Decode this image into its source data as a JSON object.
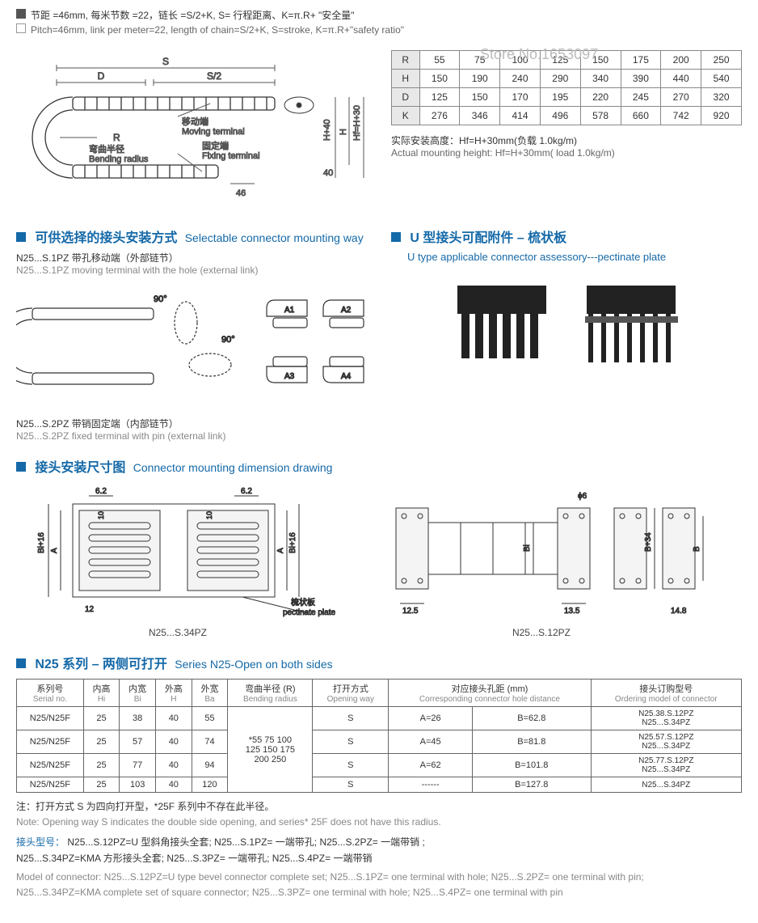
{
  "pitch": {
    "cn": "节距 =46mm, 每米节数 =22，链长 =S/2+K, S= 行程距离、K=π.R+ \"安全量\"",
    "en": "Pitch=46mm, link per meter=22, length of chain=S/2+K, S=stroke, K=π.R+\"safety ratio\""
  },
  "diagram1": {
    "labels": {
      "S": "S",
      "S2": "S/2",
      "D": "D",
      "R": "R",
      "moving_cn": "移动端",
      "moving_en": "Moving terminal",
      "bend_cn": "弯曲半径",
      "bend_en": "Bending radius",
      "fixing_cn": "固定端",
      "fixing_en": "Fixing terminal",
      "H40": "H+40",
      "Hf": "Hf=H+30",
      "H": "H",
      "d40": "40",
      "d46": "46"
    }
  },
  "spec_table": {
    "rows": [
      "R",
      "H",
      "D",
      "K"
    ],
    "data": {
      "R": [
        "55",
        "75",
        "100",
        "125",
        "150",
        "175",
        "200",
        "250"
      ],
      "H": [
        "150",
        "190",
        "240",
        "290",
        "340",
        "390",
        "440",
        "540"
      ],
      "D": [
        "125",
        "150",
        "170",
        "195",
        "220",
        "245",
        "270",
        "320"
      ],
      "K": [
        "276",
        "346",
        "414",
        "496",
        "578",
        "660",
        "742",
        "920"
      ]
    },
    "watermark": "Store No.1653097",
    "mount_cn": "实际安装高度：Hf=H+30mm(负载 1.0kg/m)",
    "mount_en": "Actual mounting height: Hf=H+30mm( load 1.0kg/m)"
  },
  "sec2": {
    "title_cn": "可供选择的接头安装方式",
    "title_en": "Selectable connector mounting way",
    "m1_cn": "N25...S.1PZ 带孔移动端（外部链节）",
    "m1_en": "N25...S.1PZ moving terminal with the hole (external link)",
    "m2_cn": "N25...S.2PZ 带销固定端（内部链节）",
    "m2_en": "N25...S.2PZ fixed terminal with pin (external link)",
    "d90a": "90°",
    "d90b": "90°",
    "A1": "A1",
    "A2": "A2",
    "A3": "A3",
    "A4": "A4"
  },
  "sec3": {
    "title_cn": "U 型接头可配附件 – 梳状板",
    "title_en": "U type applicable connector assessory---pectinate plate"
  },
  "sec4": {
    "title_cn": "接头安装尺寸图",
    "title_en": "Connector mounting dimension drawing",
    "d6_2a": "6.2",
    "d6_2b": "6.2",
    "d10a": "10",
    "d10b": "10",
    "d12": "12",
    "pect_cn": "梳状板",
    "pect_en": "pectinate plate",
    "Bi16": "Bi+16",
    "A": "A",
    "d12_5": "12.5",
    "d13_5": "13.5",
    "d14_8": "14.8",
    "phi6": "ϕ6",
    "Bi": "Bi",
    "B34": "B+34",
    "B": "B",
    "cap1": "N25...S.34PZ",
    "cap2": "N25...S.12PZ"
  },
  "sec5": {
    "title_cn": "N25 系列 – 两侧可打开",
    "title_en": "Series N25-Open on both sides",
    "headers": {
      "c1_cn": "系列号",
      "c1_en": "Serial no.",
      "c2_cn": "内高",
      "c2_en": "Hi",
      "c3_cn": "内宽",
      "c3_en": "Bi",
      "c4_cn": "外高",
      "c4_en": "H",
      "c5_cn": "外宽",
      "c5_en": "Ba",
      "c6_cn": "弯曲半径 (R)",
      "c6_en": "Bending radius",
      "c7_cn": "打开方式",
      "c7_en": "Opening way",
      "c8_cn": "对应接头孔距 (mm)",
      "c8_en": "Corresponding connector hole distance",
      "c9_cn": "接头订购型号",
      "c9_en": "Ordering model of connector"
    },
    "bend_radius": "*55 75 100\n125 150 175\n200 250",
    "rows": [
      {
        "sn": "N25/N25F",
        "hi": "25",
        "bi": "38",
        "h": "40",
        "ba": "55",
        "ow": "S",
        "a": "A=26",
        "b": "B=62.8",
        "om1": "N25.38.S.12PZ",
        "om2": "N25...S.34PZ"
      },
      {
        "sn": "N25/N25F",
        "hi": "25",
        "bi": "57",
        "h": "40",
        "ba": "74",
        "ow": "S",
        "a": "A=45",
        "b": "B=81.8",
        "om1": "N25.57.S.12PZ",
        "om2": "N25...S.34PZ"
      },
      {
        "sn": "N25/N25F",
        "hi": "25",
        "bi": "77",
        "h": "40",
        "ba": "94",
        "ow": "S",
        "a": "A=62",
        "b": "B=101.8",
        "om1": "N25.77.S.12PZ",
        "om2": "N25...S.34PZ"
      },
      {
        "sn": "N25/N25F",
        "hi": "25",
        "bi": "103",
        "h": "40",
        "ba": "120",
        "ow": "S",
        "a": "------",
        "b": "B=127.8",
        "om1": "",
        "om2": "N25...S.34PZ"
      }
    ],
    "note1_cn": "注：打开方式 S 为四向打开型，*25F 系列中不存在此半径。",
    "note1_en": "Note: Opening way S indicates the double side opening, and series* 25F does not have this radius.",
    "note2_label": "接头型号：",
    "note2_cn": "N25...S.12PZ=U 型斜角接头全套; N25...S.1PZ= 一端带孔; N25...S.2PZ= 一端带销 ;\nN25...S.34PZ=KMA 方形接头全套; N25...S.3PZ= 一端带孔; N25...S.4PZ= 一端带销",
    "note3_en": "Model of connector: N25...S.12PZ=U type bevel connector complete set; N25...S.1PZ= one terminal with hole; N25...S.2PZ= one terminal with pin;\nN25...S.34PZ=KMA complete set of square connector; N25...S.3PZ= one terminal with hole; N25...S.4PZ= one terminal with pin"
  },
  "colors": {
    "blue": "#1569a8",
    "gray": "#888",
    "border": "#666"
  }
}
